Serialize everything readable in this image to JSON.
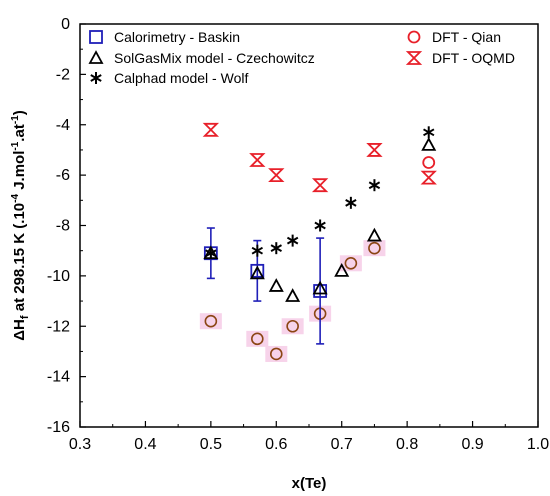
{
  "chart_data": {
    "type": "scatter",
    "xlabel": "x(Te)",
    "ylabel": {
      "main": "ΔH",
      "sub": "f",
      "rest": " at 298.15 K (.10",
      "sup1": "-4",
      "rest2": " J.mol",
      "sup2": "-1",
      "rest3": ".at",
      "sup3": "-1",
      "end": ")"
    },
    "xlim": [
      0.3,
      1.0
    ],
    "ylim": [
      -16,
      0
    ],
    "xticks": [
      "0.3",
      "0.4",
      "0.5",
      "0.6",
      "0.7",
      "0.8",
      "0.9",
      "1.0"
    ],
    "yticks": [
      "0",
      "-2",
      "-4",
      "-6",
      "-8",
      "-10",
      "-12",
      "-14",
      "-16"
    ],
    "grid": false,
    "colors": {
      "blue": "#1f1fb8",
      "red": "#e8202a",
      "black": "#000000",
      "brown": "#8b4513",
      "pink": "#f7d3ea"
    },
    "series": [
      {
        "name": "Calorimetry - Baskin",
        "marker": "square",
        "color": "#1f1fb8",
        "points": [
          {
            "x": 0.5,
            "y": -9.1,
            "err": 1.0
          },
          {
            "x": 0.571,
            "y": -9.8,
            "err": 1.2
          },
          {
            "x": 0.667,
            "y": -10.6,
            "err": 2.1
          }
        ]
      },
      {
        "name": "SolGasMix model - Czechowitcz",
        "marker": "triangle",
        "color": "#000000",
        "points": [
          {
            "x": 0.5,
            "y": -9.1
          },
          {
            "x": 0.571,
            "y": -9.9
          },
          {
            "x": 0.6,
            "y": -10.4
          },
          {
            "x": 0.625,
            "y": -10.8
          },
          {
            "x": 0.667,
            "y": -10.5
          },
          {
            "x": 0.7,
            "y": -9.8
          },
          {
            "x": 0.75,
            "y": -8.4
          },
          {
            "x": 0.833,
            "y": -4.8
          }
        ]
      },
      {
        "name": "Calphad model - Wolf",
        "marker": "asterisk",
        "color": "#000000",
        "points": [
          {
            "x": 0.5,
            "y": -9.1
          },
          {
            "x": 0.571,
            "y": -9.0
          },
          {
            "x": 0.6,
            "y": -8.9
          },
          {
            "x": 0.625,
            "y": -8.6
          },
          {
            "x": 0.667,
            "y": -8.0
          },
          {
            "x": 0.714,
            "y": -7.1
          },
          {
            "x": 0.75,
            "y": -6.4
          },
          {
            "x": 0.833,
            "y": -4.3
          }
        ]
      },
      {
        "name": "DFT - Qian",
        "marker": "circle",
        "color": "#e8202a",
        "points": [
          {
            "x": 0.833,
            "y": -5.5
          }
        ]
      },
      {
        "name": "DFT - OQMD",
        "marker": "hourglass",
        "color": "#e8202a",
        "points": [
          {
            "x": 0.5,
            "y": -4.2
          },
          {
            "x": 0.571,
            "y": -5.4
          },
          {
            "x": 0.6,
            "y": -6.0
          },
          {
            "x": 0.667,
            "y": -6.4
          },
          {
            "x": 0.75,
            "y": -5.0
          },
          {
            "x": 0.833,
            "y": -6.1
          }
        ]
      },
      {
        "marker": "circle-highlight",
        "color": "#8b4513",
        "points": [
          {
            "x": 0.5,
            "y": -11.8
          },
          {
            "x": 0.571,
            "y": -12.5
          },
          {
            "x": 0.6,
            "y": -13.1
          },
          {
            "x": 0.625,
            "y": -12.0
          },
          {
            "x": 0.667,
            "y": -11.5
          },
          {
            "x": 0.714,
            "y": -9.5
          },
          {
            "x": 0.75,
            "y": -8.9
          }
        ]
      }
    ],
    "legend": [
      {
        "label": "Calorimetry - Baskin",
        "marker": "square",
        "color": "#1f1fb8"
      },
      {
        "label": "SolGasMix model - Czechowitcz",
        "marker": "triangle",
        "color": "#000000"
      },
      {
        "label": "Calphad model - Wolf",
        "marker": "asterisk",
        "color": "#000000"
      },
      {
        "label": "DFT - Qian",
        "marker": "circle",
        "color": "#e8202a"
      },
      {
        "label": "DFT - OQMD",
        "marker": "hourglass",
        "color": "#e8202a"
      }
    ]
  }
}
